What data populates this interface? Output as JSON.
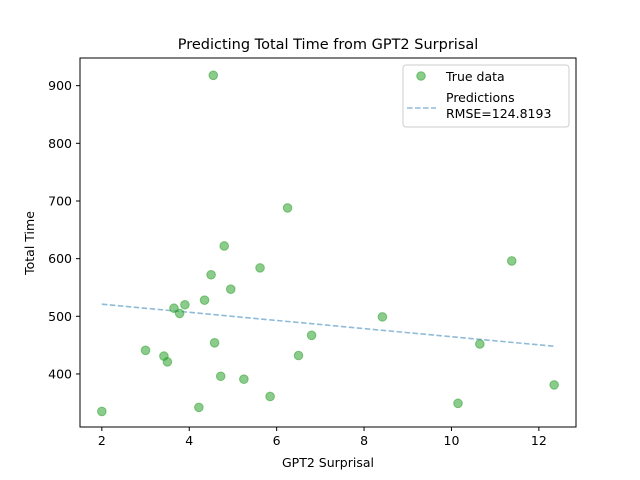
{
  "chart_data": {
    "type": "scatter",
    "title": "Predicting Total Time from GPT2 Surprisal",
    "xlabel": "GPT2 Surprisal",
    "ylabel": "Total Time",
    "xlim": [
      1.5,
      12.85
    ],
    "ylim": [
      308,
      948
    ],
    "xticks": [
      2,
      4,
      6,
      8,
      10,
      12
    ],
    "yticks": [
      400,
      500,
      600,
      700,
      800,
      900
    ],
    "grid": false,
    "legend_position": "top-right",
    "colors": {
      "points": "#2ca02c",
      "line": "#1f77b4"
    },
    "series": [
      {
        "name": "True data",
        "kind": "scatter",
        "points": [
          [
            2.0,
            335
          ],
          [
            3.0,
            441
          ],
          [
            3.42,
            431
          ],
          [
            3.5,
            421
          ],
          [
            3.65,
            514
          ],
          [
            3.78,
            505
          ],
          [
            3.9,
            520
          ],
          [
            4.22,
            342
          ],
          [
            4.35,
            528
          ],
          [
            4.5,
            572
          ],
          [
            4.55,
            918
          ],
          [
            4.58,
            454
          ],
          [
            4.72,
            396
          ],
          [
            4.8,
            622
          ],
          [
            4.95,
            547
          ],
          [
            5.25,
            391
          ],
          [
            5.62,
            584
          ],
          [
            5.85,
            361
          ],
          [
            6.25,
            688
          ],
          [
            6.5,
            432
          ],
          [
            6.8,
            467
          ],
          [
            8.42,
            499
          ],
          [
            10.15,
            349
          ],
          [
            10.65,
            452
          ],
          [
            11.38,
            596
          ],
          [
            12.35,
            381
          ]
        ]
      },
      {
        "name": "Predictions",
        "kind": "line",
        "points": [
          [
            2.0,
            521
          ],
          [
            12.35,
            448
          ]
        ]
      }
    ],
    "legend_entries": [
      {
        "label": "True data"
      },
      {
        "label": "Predictions",
        "sublabel": "RMSE=124.8193"
      }
    ]
  }
}
